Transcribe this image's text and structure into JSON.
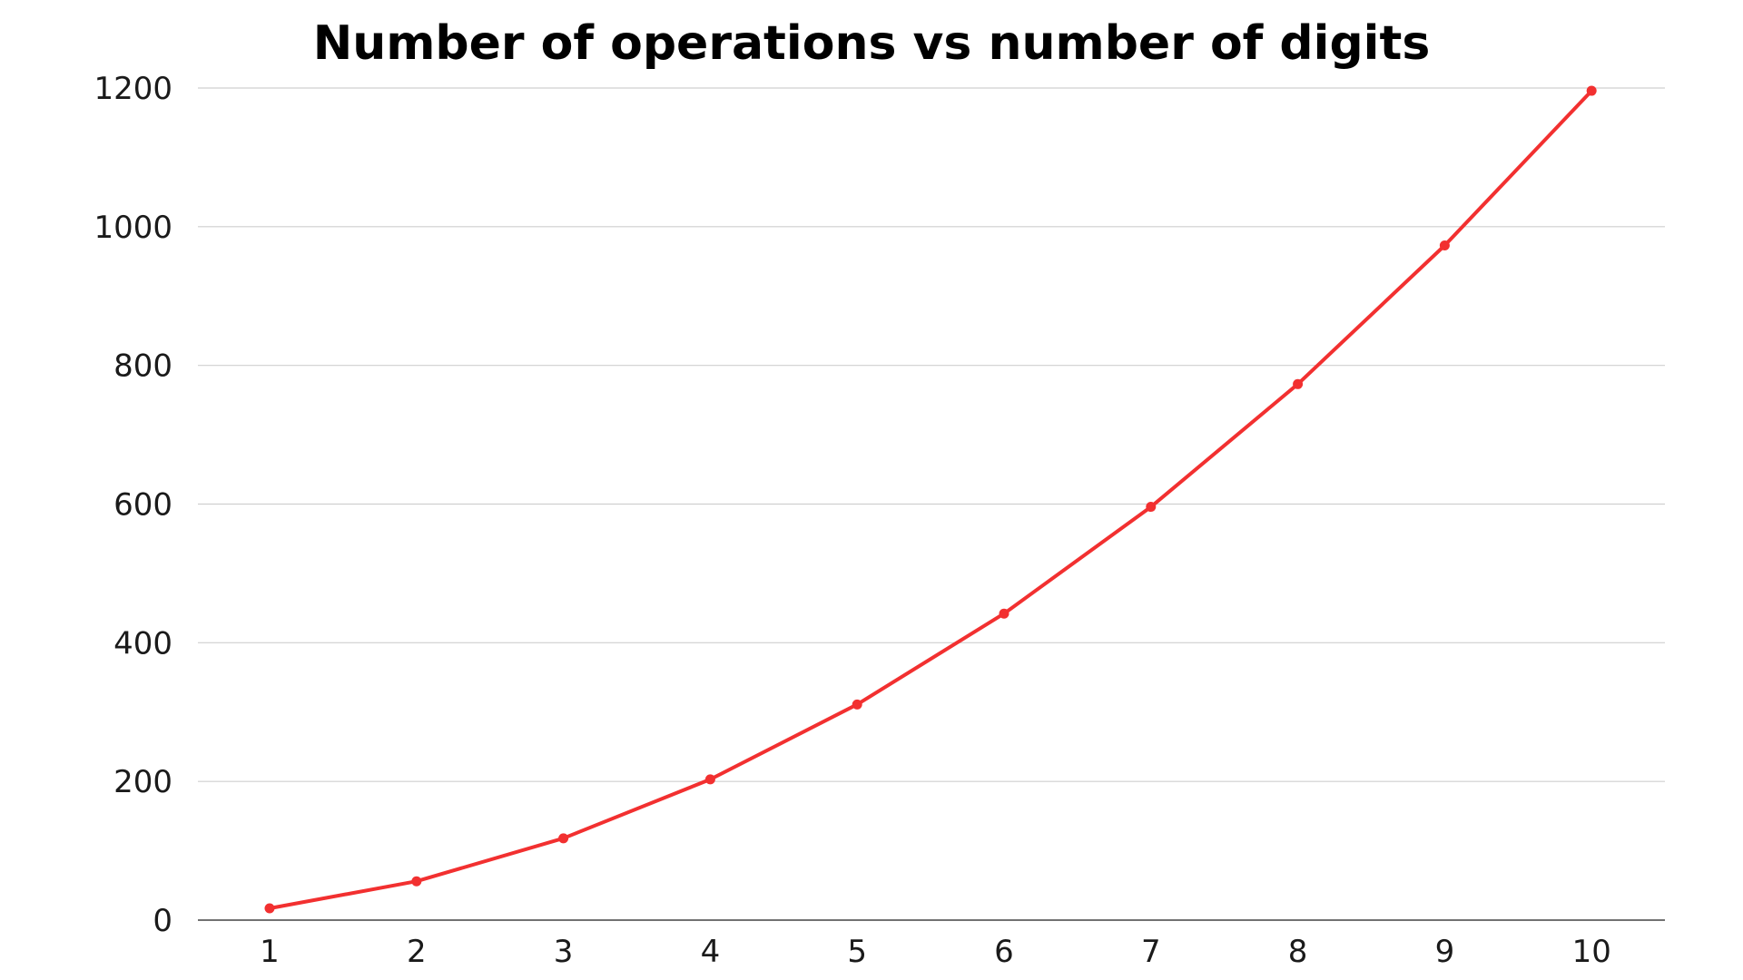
{
  "chart_data": {
    "type": "line",
    "title": "Number of operations vs number of digits",
    "xlabel": "",
    "ylabel": "",
    "x": [
      1,
      2,
      3,
      4,
      5,
      6,
      7,
      8,
      9,
      10
    ],
    "x_tick_labels": [
      "1",
      "2",
      "3",
      "4",
      "5",
      "6",
      "7",
      "8",
      "9",
      "10"
    ],
    "y_tick_labels": [
      "0",
      "200",
      "400",
      "600",
      "800",
      "1000",
      "1200"
    ],
    "y_ticks": [
      0,
      200,
      400,
      600,
      800,
      1000,
      1200
    ],
    "ylim": [
      0,
      1200
    ],
    "grid": true,
    "legend": "none",
    "series": [
      {
        "color": "#f23030",
        "values": [
          17,
          56,
          118,
          203,
          311,
          442,
          596,
          773,
          973,
          1196
        ]
      }
    ]
  }
}
